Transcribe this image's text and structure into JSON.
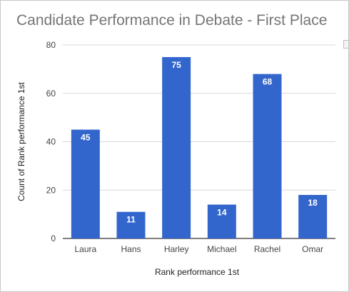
{
  "chart_data": {
    "type": "bar",
    "title": "Candidate Performance in Debate - First Place",
    "xlabel": "Rank performance 1st",
    "ylabel": "Count of Rank performance 1st",
    "categories": [
      "Laura",
      "Hans",
      "Harley",
      "Michael",
      "Rachel",
      "Omar"
    ],
    "values": [
      45,
      11,
      75,
      14,
      68,
      18
    ],
    "ylim": [
      0,
      80
    ],
    "yticks": [
      0,
      20,
      40,
      60,
      80
    ],
    "grid": true,
    "legend": "none",
    "bar_color": "#3366cc",
    "grid_color": "#d9d9d9",
    "baseline_color": "#333333"
  }
}
